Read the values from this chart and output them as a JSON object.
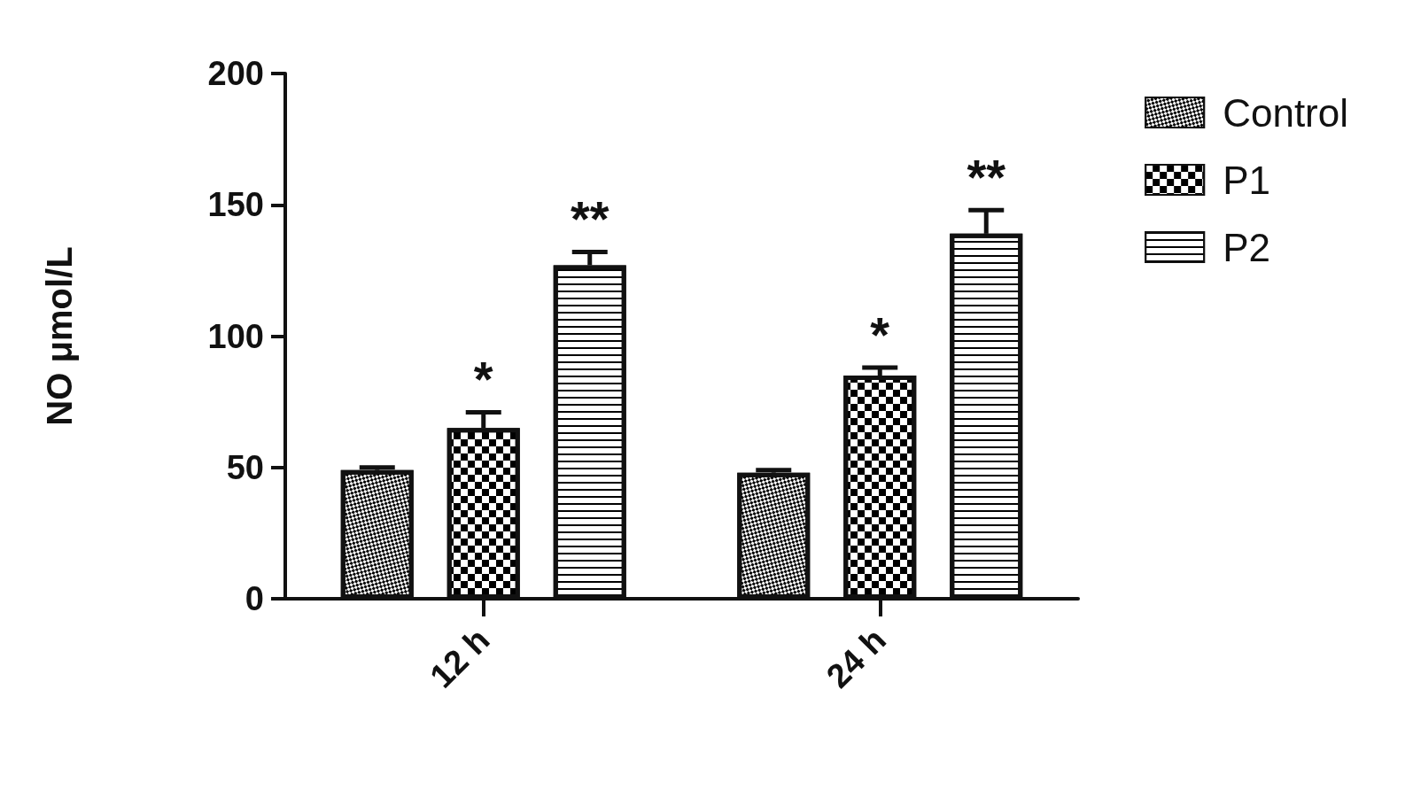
{
  "chart_data": {
    "type": "bar",
    "ylabel": "NO μmol/L",
    "categories": [
      "12 h",
      "24 h"
    ],
    "series": [
      {
        "name": "Control",
        "color": "#ffffff",
        "values": [
          49,
          48
        ],
        "errors": [
          1,
          1
        ]
      },
      {
        "name": "P1",
        "color": "#ffffff",
        "values": [
          65,
          85
        ],
        "errors": [
          6,
          3
        ],
        "value_labels": [
          "*",
          "*"
        ]
      },
      {
        "name": "P2",
        "color": "#ffffff",
        "values": [
          127,
          139
        ],
        "errors": [
          5,
          9
        ],
        "value_labels": [
          "**",
          "**"
        ]
      }
    ],
    "ylim": [
      0,
      200
    ],
    "yticks": [
      0,
      50,
      100,
      150,
      200
    ],
    "grid": false,
    "legend": "top right"
  }
}
